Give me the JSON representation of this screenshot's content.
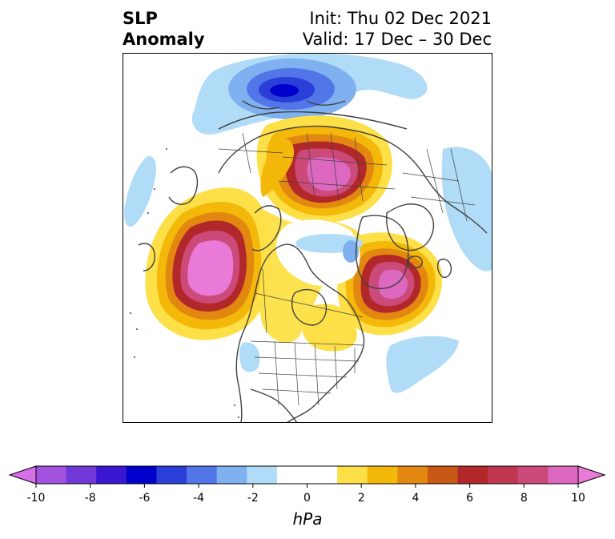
{
  "title": {
    "variable": "SLP",
    "subtitle": "Anomaly",
    "init": "Init: Thu 02 Dec 2021",
    "valid": "Valid: 17 Dec – 30 Dec"
  },
  "colorbar": {
    "unit": "hPa",
    "min": -10,
    "max": 10,
    "step": 1,
    "ticks": [
      "-10",
      "-8",
      "-6",
      "-4",
      "-2",
      "0",
      "2",
      "4",
      "6",
      "8",
      "10"
    ],
    "colors": [
      "#d66fe8",
      "#a252de",
      "#7038d6",
      "#3a16d0",
      "#0000cc",
      "#2a3fd8",
      "#5276e8",
      "#7fb0f0",
      "#b0dcf8",
      "#ffffff",
      "#ffffff",
      "#fde047",
      "#f3b80a",
      "#e28810",
      "#c75815",
      "#b2282a",
      "#c03850",
      "#cc4a7a",
      "#dc68c0",
      "#ea7ad8"
    ]
  },
  "map": {
    "projection": "north polar stereographic",
    "legend": "none",
    "features": [
      "coastlines",
      "country borders",
      "us state borders"
    ]
  }
}
